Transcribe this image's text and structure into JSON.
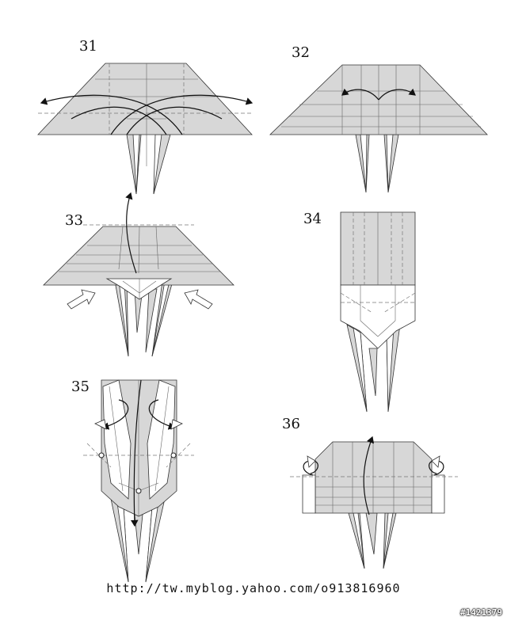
{
  "diagram": {
    "steps": [
      {
        "number": "31"
      },
      {
        "number": "32"
      },
      {
        "number": "33"
      },
      {
        "number": "34"
      },
      {
        "number": "35"
      },
      {
        "number": "36"
      }
    ],
    "source_url": "http://tw.myblog.yahoo.com/o913816960",
    "watermark": "#1421379"
  }
}
